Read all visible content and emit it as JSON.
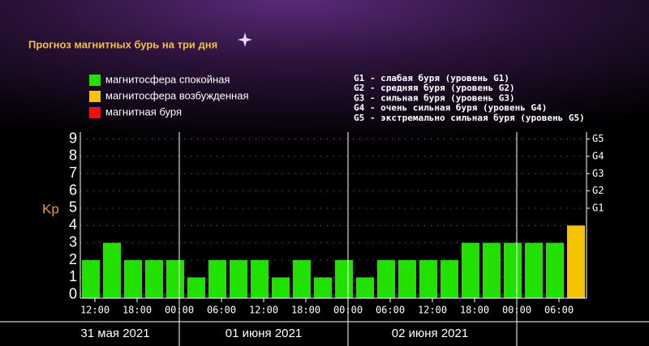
{
  "chart_data": {
    "type": "bar",
    "title": "Прогноз магнитных бурь на три дня",
    "ylabel": "Kp",
    "legend": [
      {
        "name": "магнитосфера спокойная",
        "color": "#22e000"
      },
      {
        "name": "магнитосфера возбужденная",
        "color": "#f5c400"
      },
      {
        "name": "магнитная буря",
        "color": "#ee1010"
      }
    ],
    "scale_notes": [
      "G1 - слабая буря (уровень G1)",
      "G2 - средняя буря (уровень G2)",
      "G3 - сильная буря (уровень G3)",
      "G4 - очень сильная буря (уровень G4)",
      "G5 - экстремально сильная буря (уровень G5)"
    ],
    "categories": [
      "12:00",
      null,
      "18:00",
      null,
      "00:00",
      null,
      "06:00",
      null,
      "12:00",
      null,
      "18:00",
      null,
      "00:00",
      null,
      "06:00",
      null,
      "12:00",
      null,
      "18:00",
      null,
      "00:00",
      null,
      "06:00",
      null
    ],
    "values": [
      2,
      3,
      2,
      2,
      2,
      1,
      2,
      2,
      2,
      1,
      2,
      1,
      2,
      1,
      2,
      2,
      2,
      2,
      3,
      3,
      3,
      3,
      3,
      4
    ],
    "colors": [
      "#22e000",
      "#22e000",
      "#22e000",
      "#22e000",
      "#22e000",
      "#22e000",
      "#22e000",
      "#22e000",
      "#22e000",
      "#22e000",
      "#22e000",
      "#22e000",
      "#22e000",
      "#22e000",
      "#22e000",
      "#22e000",
      "#22e000",
      "#22e000",
      "#22e000",
      "#22e000",
      "#22e000",
      "#22e000",
      "#22e000",
      "#f5c400"
    ],
    "dates": [
      "31 мая 2021",
      "01 июня 2021",
      "02 июня 2021"
    ],
    "ylim": [
      -0.2,
      9.4
    ],
    "yticks": [
      0,
      1,
      2,
      3,
      4,
      5,
      6,
      7,
      8,
      9
    ],
    "y2lim": [
      -0.2,
      9.4
    ],
    "y2ticks": [
      {
        "value": 5,
        "label": "G1"
      },
      {
        "value": 6,
        "label": "G2"
      },
      {
        "value": 7,
        "label": "G3"
      },
      {
        "value": 8,
        "label": "G4"
      },
      {
        "value": 9,
        "label": "G5"
      }
    ],
    "grid": true
  }
}
